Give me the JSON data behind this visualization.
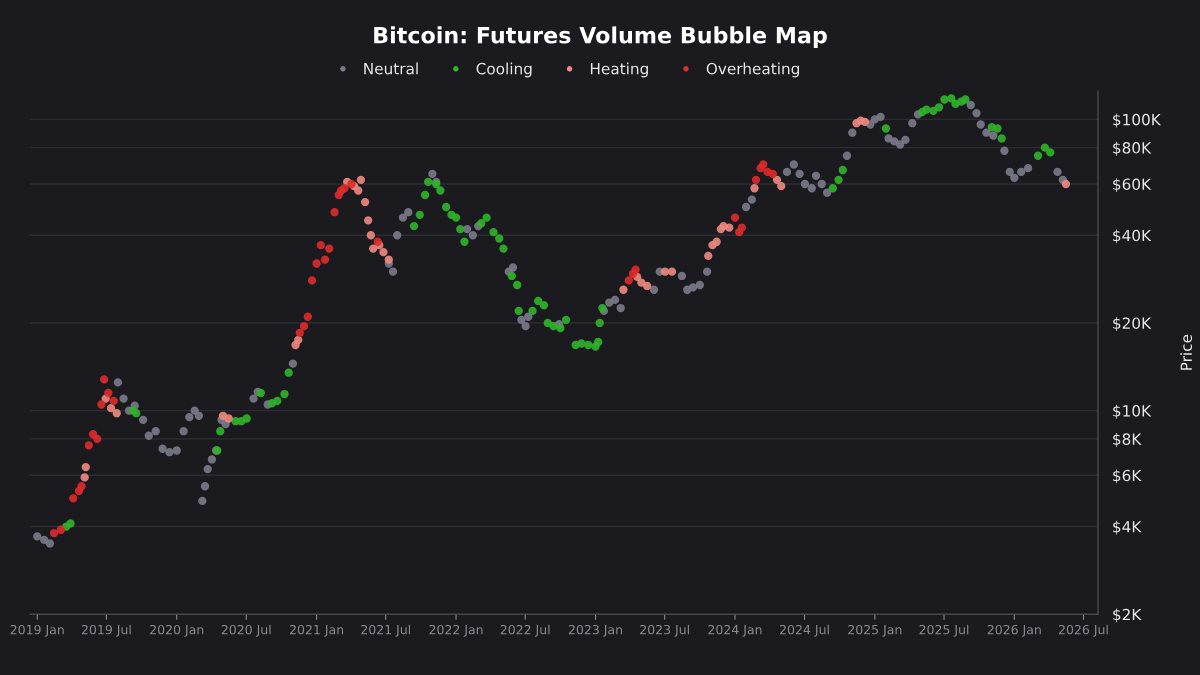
{
  "chart_data": {
    "type": "scatter",
    "title": "Bitcoin: Futures Volume Bubble Map",
    "ylabel": "Price",
    "log": "y",
    "grid": "y",
    "legend": "top",
    "marker": "circle",
    "xlim": [
      "2018-12-13",
      "2026-08-08"
    ],
    "ylim": [
      2000,
      125000
    ],
    "xticks": [
      {
        "value": "2019-01-01",
        "label": "2019 Jan"
      },
      {
        "value": "2019-07-01",
        "label": "2019 Jul"
      },
      {
        "value": "2020-01-01",
        "label": "2020 Jan"
      },
      {
        "value": "2020-07-01",
        "label": "2020 Jul"
      },
      {
        "value": "2021-01-01",
        "label": "2021 Jan"
      },
      {
        "value": "2021-07-01",
        "label": "2021 Jul"
      },
      {
        "value": "2022-01-01",
        "label": "2022 Jan"
      },
      {
        "value": "2022-07-01",
        "label": "2022 Jul"
      },
      {
        "value": "2023-01-01",
        "label": "2023 Jan"
      },
      {
        "value": "2023-07-01",
        "label": "2023 Jul"
      },
      {
        "value": "2024-01-01",
        "label": "2024 Jan"
      },
      {
        "value": "2024-07-01",
        "label": "2024 Jul"
      },
      {
        "value": "2025-01-01",
        "label": "2025 Jan"
      },
      {
        "value": "2025-07-01",
        "label": "2025 Jul"
      },
      {
        "value": "2026-01-01",
        "label": "2026 Jan"
      },
      {
        "value": "2026-07-01",
        "label": "2026 Jul"
      }
    ],
    "yticks": [
      {
        "value": 2000,
        "label": "$2K"
      },
      {
        "value": 4000,
        "label": "$4K"
      },
      {
        "value": 6000,
        "label": "$6K"
      },
      {
        "value": 8000,
        "label": "$8K"
      },
      {
        "value": 10000,
        "label": "$10K"
      },
      {
        "value": 20000,
        "label": "$20K"
      },
      {
        "value": 40000,
        "label": "$40K"
      },
      {
        "value": 60000,
        "label": "$60K"
      },
      {
        "value": 80000,
        "label": "$80K"
      },
      {
        "value": 100000,
        "label": "$100K"
      }
    ],
    "series": [
      {
        "name": "Neutral",
        "color": "#7b7b8a",
        "x": [
          "2019-01-01",
          "2019-01-19",
          "2019-02-03",
          "2019-07-31",
          "2019-08-15",
          "2019-08-29",
          "2019-09-13",
          "2019-10-05",
          "2019-10-20",
          "2019-11-07",
          "2019-11-25",
          "2019-12-13",
          "2020-01-01",
          "2020-01-19",
          "2020-02-03",
          "2020-02-17",
          "2020-02-28",
          "2020-03-08",
          "2020-03-15",
          "2020-03-22",
          "2020-04-02",
          "2020-04-13",
          "2020-04-27",
          "2020-05-08",
          "2020-07-20",
          "2020-07-31",
          "2020-08-26",
          "2020-10-31",
          "2021-07-09",
          "2021-07-20",
          "2021-07-31",
          "2021-08-15",
          "2021-08-29",
          "2021-10-31",
          "2021-11-10",
          "2022-01-30",
          "2022-02-14",
          "2022-02-28",
          "2022-05-19",
          "2022-05-30",
          "2022-06-21",
          "2022-07-02",
          "2022-07-09",
          "2022-09-28",
          "2023-01-23",
          "2023-02-06",
          "2023-02-21",
          "2023-03-08",
          "2023-06-03",
          "2023-06-18",
          "2023-08-15",
          "2023-08-29",
          "2023-09-13",
          "2023-10-01",
          "2023-10-20",
          "2024-01-30",
          "2024-02-14",
          "2024-05-16",
          "2024-06-03",
          "2024-06-18",
          "2024-07-02",
          "2024-07-20",
          "2024-07-31",
          "2024-08-15",
          "2024-08-29",
          "2024-10-20",
          "2024-11-03",
          "2024-12-20",
          "2025-01-01",
          "2025-01-16",
          "2025-02-06",
          "2025-02-21",
          "2025-03-08",
          "2025-03-22",
          "2025-04-09",
          "2025-04-24",
          "2025-09-09",
          "2025-09-24",
          "2025-10-05",
          "2025-10-20",
          "2025-11-07",
          "2025-12-06",
          "2025-12-20",
          "2026-01-01",
          "2026-01-19",
          "2026-02-06",
          "2026-04-24",
          "2026-05-08"
        ],
        "values": [
          3700,
          3600,
          3500,
          12500,
          11000,
          10000,
          10400,
          9300,
          8200,
          8500,
          7400,
          7200,
          7300,
          8500,
          9500,
          10000,
          9600,
          4900,
          5500,
          6300,
          6800,
          7300,
          9300,
          9000,
          11000,
          11600,
          10500,
          14500,
          32000,
          30000,
          40000,
          46000,
          48000,
          65000,
          61000,
          42000,
          40000,
          43000,
          30000,
          31000,
          20500,
          19500,
          21000,
          19800,
          22000,
          23500,
          24000,
          22500,
          26000,
          30000,
          29000,
          26000,
          26500,
          27000,
          30000,
          50000,
          53000,
          66000,
          70000,
          65000,
          60000,
          58000,
          64000,
          60000,
          56000,
          75000,
          90000,
          96000,
          100000,
          102000,
          86000,
          84000,
          82000,
          85000,
          97000,
          104000,
          112000,
          105000,
          96000,
          90000,
          88000,
          78000,
          66000,
          63000,
          66000,
          68000,
          66000,
          62000
        ]
      },
      {
        "name": "Cooling",
        "color": "#2fb52a",
        "x": [
          "2019-03-18",
          "2019-03-29",
          "2019-09-09",
          "2019-09-17",
          "2020-04-16",
          "2020-04-24",
          "2020-06-03",
          "2020-06-18",
          "2020-07-02",
          "2020-08-08",
          "2020-09-06",
          "2020-09-20",
          "2020-10-09",
          "2020-10-20",
          "2021-09-13",
          "2021-09-28",
          "2021-10-12",
          "2021-10-20",
          "2021-11-10",
          "2021-11-21",
          "2021-12-06",
          "2021-12-20",
          "2022-01-01",
          "2022-01-12",
          "2022-01-23",
          "2022-03-08",
          "2022-03-22",
          "2022-04-09",
          "2022-04-24",
          "2022-05-05",
          "2022-05-27",
          "2022-06-10",
          "2022-06-14",
          "2022-07-20",
          "2022-08-04",
          "2022-08-19",
          "2022-08-29",
          "2022-09-13",
          "2022-10-01",
          "2022-10-16",
          "2022-11-10",
          "2022-11-25",
          "2022-12-13",
          "2023-01-01",
          "2023-01-08",
          "2023-01-12",
          "2023-01-19",
          "2024-09-13",
          "2024-09-28",
          "2024-10-09",
          "2025-01-30",
          "2025-05-05",
          "2025-05-16",
          "2025-06-03",
          "2025-06-18",
          "2025-07-02",
          "2025-07-20",
          "2025-07-31",
          "2025-08-15",
          "2025-08-26",
          "2025-11-03",
          "2025-11-18",
          "2025-11-29",
          "2026-03-04",
          "2026-03-22",
          "2026-04-05"
        ],
        "values": [
          4000,
          4100,
          10000,
          9800,
          7300,
          8500,
          9200,
          9200,
          9400,
          11500,
          10600,
          10800,
          11400,
          13500,
          43000,
          47000,
          55000,
          61000,
          60000,
          57000,
          50000,
          47000,
          46000,
          42000,
          38000,
          44000,
          46000,
          41000,
          39000,
          36000,
          29000,
          27000,
          22000,
          22000,
          23800,
          23000,
          20000,
          19500,
          19200,
          20500,
          16800,
          17000,
          16800,
          16600,
          17200,
          20000,
          22500,
          58000,
          62000,
          67000,
          93000,
          106000,
          108000,
          107000,
          110000,
          117000,
          118000,
          113000,
          115000,
          117000,
          94000,
          93000,
          86000,
          75000,
          80000,
          77000
        ]
      },
      {
        "name": "Heating",
        "color": "#f08a80",
        "x": [
          "2019-05-05",
          "2019-05-08",
          "2019-06-29",
          "2019-07-13",
          "2019-07-28",
          "2020-05-01",
          "2020-05-16",
          "2020-11-07",
          "2020-11-14",
          "2021-03-22",
          "2021-04-09",
          "2021-04-20",
          "2021-04-27",
          "2021-05-08",
          "2021-05-16",
          "2021-05-23",
          "2021-05-29",
          "2021-06-14",
          "2021-06-25",
          "2021-07-09",
          "2023-03-15",
          "2023-04-20",
          "2023-05-01",
          "2023-05-16",
          "2023-07-02",
          "2023-07-20",
          "2023-10-23",
          "2023-11-03",
          "2023-11-14",
          "2023-11-25",
          "2023-12-02",
          "2023-12-17",
          "2024-02-21",
          "2024-04-20",
          "2024-05-01",
          "2024-11-14",
          "2024-11-25",
          "2024-12-06",
          "2026-05-16"
        ],
        "values": [
          5900,
          6400,
          11000,
          10200,
          9800,
          9600,
          9400,
          16800,
          17500,
          61000,
          59000,
          57000,
          62000,
          52000,
          45000,
          40000,
          36000,
          37000,
          35000,
          33000,
          26000,
          28800,
          27500,
          26800,
          30000,
          30000,
          34000,
          37000,
          38000,
          42000,
          43000,
          42500,
          58000,
          62000,
          59000,
          97000,
          99000,
          98000,
          60000
        ]
      },
      {
        "name": "Overheating",
        "color": "#e02b2b",
        "x": [
          "2019-02-14",
          "2019-03-04",
          "2019-04-05",
          "2019-04-20",
          "2019-04-27",
          "2019-05-16",
          "2019-05-27",
          "2019-06-07",
          "2019-06-18",
          "2019-06-25",
          "2019-07-06",
          "2019-07-20",
          "2020-11-18",
          "2020-11-29",
          "2020-12-09",
          "2020-12-20",
          "2021-01-01",
          "2021-01-12",
          "2021-01-23",
          "2021-02-03",
          "2021-02-17",
          "2021-02-28",
          "2021-03-06",
          "2021-03-15",
          "2021-04-02",
          "2021-06-10",
          "2023-03-29",
          "2023-04-09",
          "2023-04-16",
          "2024-01-01",
          "2024-01-12",
          "2024-01-19",
          "2024-02-25",
          "2024-03-08",
          "2024-03-15",
          "2024-03-26",
          "2024-04-09"
        ],
        "values": [
          3800,
          3900,
          5000,
          5300,
          5500,
          7600,
          8300,
          8000,
          10500,
          12800,
          11500,
          10800,
          18500,
          19500,
          21000,
          28000,
          32000,
          37000,
          33000,
          36000,
          48000,
          55000,
          57000,
          58000,
          60000,
          38000,
          28000,
          29500,
          30500,
          46000,
          41000,
          42500,
          62000,
          68000,
          70000,
          66000,
          65000
        ]
      }
    ]
  }
}
